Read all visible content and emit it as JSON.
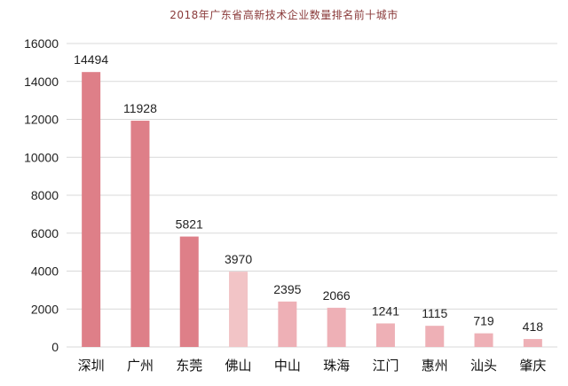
{
  "chart_data": {
    "type": "bar",
    "title": "2018年广东省高新技术企业数量排名前十城市",
    "categories": [
      "深圳",
      "广州",
      "东莞",
      "佛山",
      "中山",
      "珠海",
      "江门",
      "惠州",
      "汕头",
      "肇庆"
    ],
    "values": [
      14494,
      11928,
      5821,
      3970,
      2395,
      2066,
      1241,
      1115,
      719,
      418
    ],
    "ylim": [
      0,
      16000
    ],
    "yticks": [
      0,
      2000,
      4000,
      6000,
      8000,
      10000,
      12000,
      14000,
      16000
    ],
    "grid": true,
    "legend": "none",
    "bar_colors": [
      "#de7f88",
      "#de7f88",
      "#de7f88",
      "#f2c4c6",
      "#eeb0b6",
      "#eeb0b6",
      "#eeb0b6",
      "#eeb0b6",
      "#eeb0b6",
      "#eeb0b6"
    ],
    "gridline_color": "#d9d9d9",
    "title_color": "#8a3a3a"
  }
}
